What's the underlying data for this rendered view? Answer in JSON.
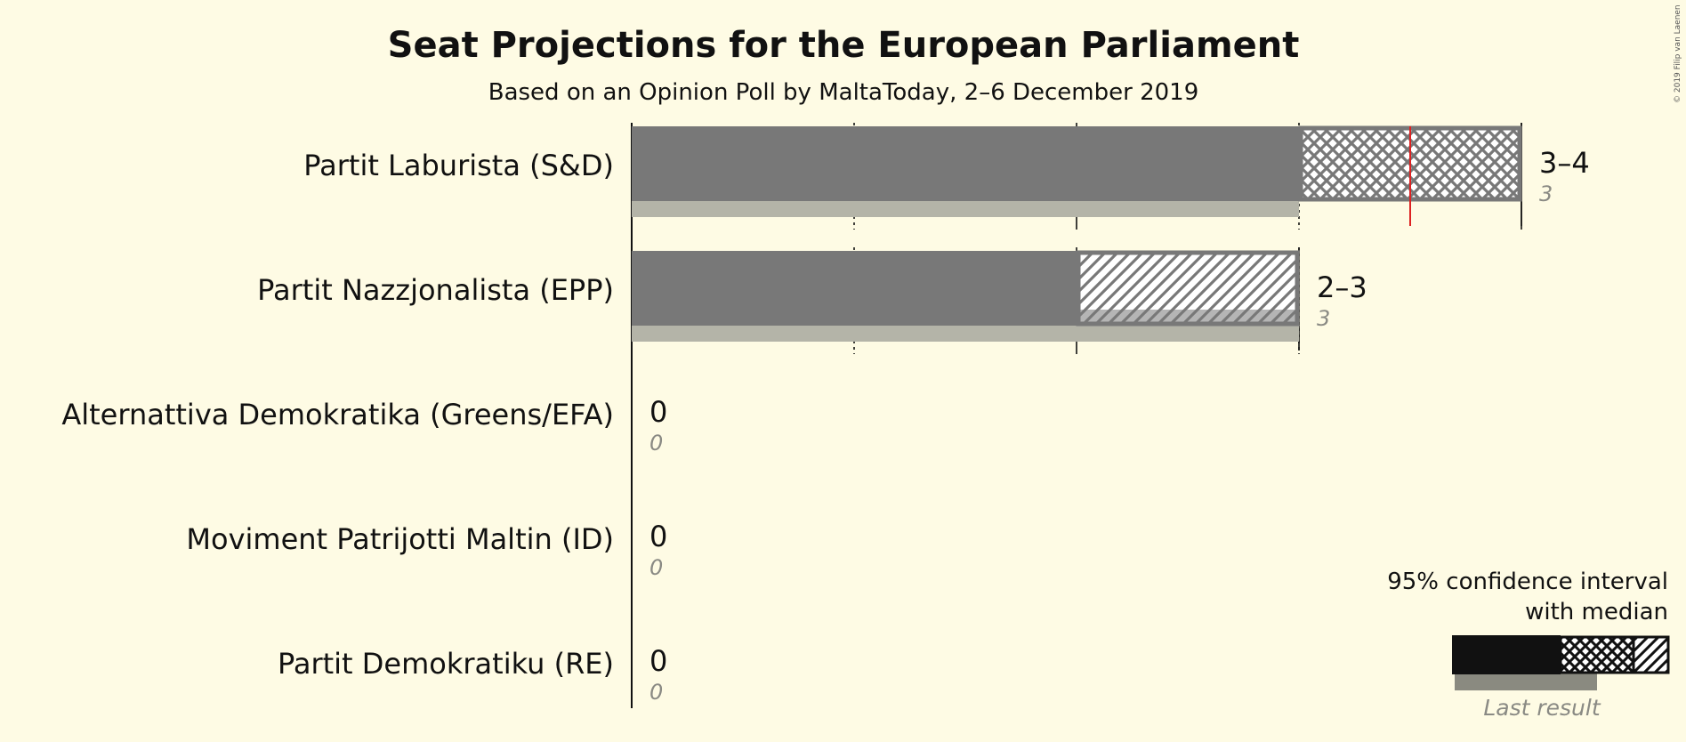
{
  "chart_data": {
    "type": "bar",
    "title": "Seat Projections for the European Parliament",
    "subtitle": "Based on an Opinion Poll by MaltaToday, 2–6 December 2019",
    "copyright": "© 2019 Filip van Laenen",
    "xlim": [
      0,
      4
    ],
    "categories": [
      "Partit Laburista (S&D)",
      "Partit Nazzjonalista (EPP)",
      "Alternattiva Demokratika (Greens/EFA)",
      "Moviment Patrijotti Maltin (ID)",
      "Partit Demokratiku (RE)"
    ],
    "series": [
      {
        "name": "95% confidence interval low",
        "values": [
          3,
          2,
          0,
          0,
          0
        ]
      },
      {
        "name": "95% confidence interval high",
        "values": [
          4,
          3,
          0,
          0,
          0
        ]
      },
      {
        "name": "median",
        "values": [
          3.5,
          2,
          0,
          0,
          0
        ]
      },
      {
        "name": "Last result",
        "values": [
          3,
          3,
          0,
          0,
          0
        ]
      }
    ],
    "range_labels": [
      "3–4",
      "2–3",
      "0",
      "0",
      "0"
    ],
    "last_labels": [
      "3",
      "3",
      "0",
      "0",
      "0"
    ],
    "majority_line": 3.5,
    "colors": {
      "bar": "#787878",
      "hatch_stroke": "#787878",
      "last": "#b4b4a8",
      "median": "#dd2222",
      "axis": "#111111",
      "legend_dark": "#111111",
      "legend_last": "#8a8a80"
    },
    "legend": {
      "line1": "95% confidence interval",
      "line2": "with median",
      "last_result": "Last result",
      "placement": "bottom-right"
    }
  }
}
